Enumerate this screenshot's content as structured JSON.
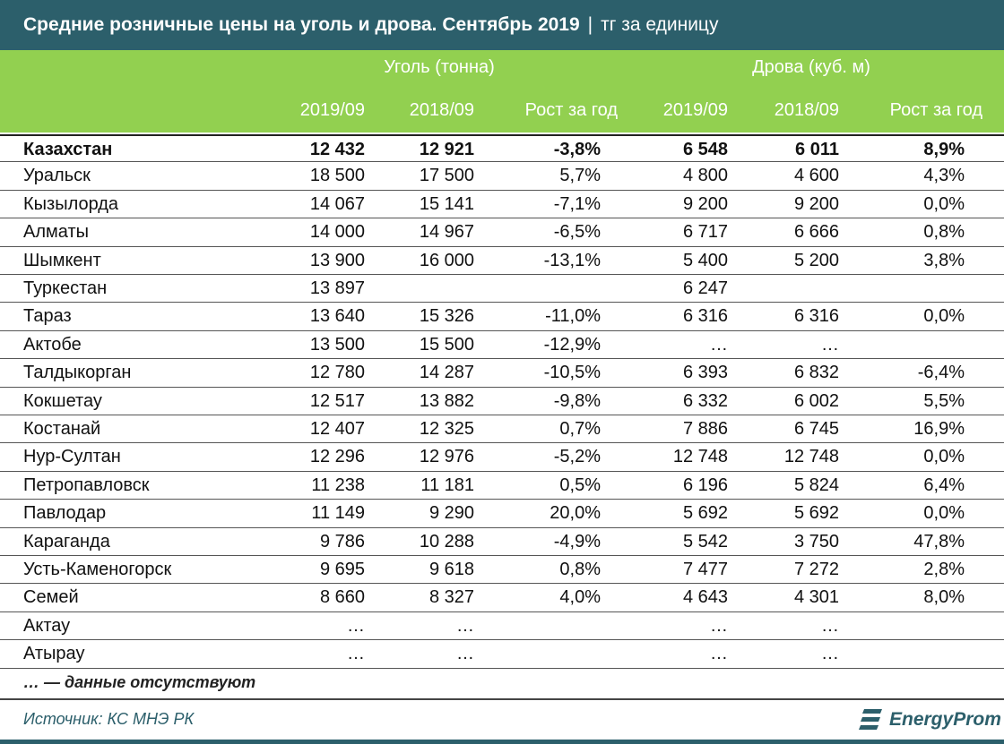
{
  "header": {
    "title": "Средние розничные цены на уголь и дрова. Сентябрь 2019",
    "separator": "|",
    "unit": "тг за единицу"
  },
  "groups": {
    "coal": "Уголь (тонна)",
    "wood": "Дрова (куб. м)"
  },
  "columns": [
    "2019/09",
    "2018/09",
    "Рост за год",
    "2019/09",
    "2018/09",
    "Рост за год"
  ],
  "chart_data": {
    "type": "table",
    "title": "Средние розничные цены на уголь и дрова. Сентябрь 2019",
    "unit": "тг за единицу",
    "groups": [
      "Уголь (тонна)",
      "Дрова (куб. м)"
    ],
    "columns": [
      "2019/09",
      "2018/09",
      "Рост за год",
      "2019/09",
      "2018/09",
      "Рост за год"
    ],
    "rows": [
      {
        "name": "Казахстан",
        "values": [
          "12 432",
          "12 921",
          "-3,8%",
          "6 548",
          "6 011",
          "8,9%"
        ]
      },
      {
        "name": "Уральск",
        "values": [
          "18 500",
          "17 500",
          "5,7%",
          "4 800",
          "4 600",
          "4,3%"
        ]
      },
      {
        "name": "Кызылорда",
        "values": [
          "14 067",
          "15 141",
          "-7,1%",
          "9 200",
          "9 200",
          "0,0%"
        ]
      },
      {
        "name": "Алматы",
        "values": [
          "14 000",
          "14 967",
          "-6,5%",
          "6 717",
          "6 666",
          "0,8%"
        ]
      },
      {
        "name": "Шымкент",
        "values": [
          "13 900",
          "16 000",
          "-13,1%",
          "5 400",
          "5 200",
          "3,8%"
        ]
      },
      {
        "name": "Туркестан",
        "values": [
          "13 897",
          "",
          "",
          "6 247",
          "",
          ""
        ]
      },
      {
        "name": "Тараз",
        "values": [
          "13 640",
          "15 326",
          "-11,0%",
          "6 316",
          "6 316",
          "0,0%"
        ]
      },
      {
        "name": "Актобе",
        "values": [
          "13 500",
          "15 500",
          "-12,9%",
          "…",
          "…",
          ""
        ]
      },
      {
        "name": "Талдыкорган",
        "values": [
          "12 780",
          "14 287",
          "-10,5%",
          "6 393",
          "6 832",
          "-6,4%"
        ]
      },
      {
        "name": "Кокшетау",
        "values": [
          "12 517",
          "13 882",
          "-9,8%",
          "6 332",
          "6 002",
          "5,5%"
        ]
      },
      {
        "name": "Костанай",
        "values": [
          "12 407",
          "12 325",
          "0,7%",
          "7 886",
          "6 745",
          "16,9%"
        ]
      },
      {
        "name": "Нур-Султан",
        "values": [
          "12 296",
          "12 976",
          "-5,2%",
          "12 748",
          "12 748",
          "0,0%"
        ]
      },
      {
        "name": "Петропавловск",
        "values": [
          "11 238",
          "11 181",
          "0,5%",
          "6 196",
          "5 824",
          "6,4%"
        ]
      },
      {
        "name": "Павлодар",
        "values": [
          "11 149",
          "9 290",
          "20,0%",
          "5 692",
          "5 692",
          "0,0%"
        ]
      },
      {
        "name": "Караганда",
        "values": [
          "9 786",
          "10 288",
          "-4,9%",
          "5 542",
          "3 750",
          "47,8%"
        ]
      },
      {
        "name": "Усть-Каменогорск",
        "values": [
          "9 695",
          "9 618",
          "0,8%",
          "7 477",
          "7 272",
          "2,8%"
        ]
      },
      {
        "name": "Семей",
        "values": [
          "8 660",
          "8 327",
          "4,0%",
          "4 643",
          "4 301",
          "8,0%"
        ]
      },
      {
        "name": "Актау",
        "values": [
          "…",
          "…",
          "",
          "…",
          "…",
          ""
        ]
      },
      {
        "name": "Атырау",
        "values": [
          "…",
          "…",
          "",
          "…",
          "…",
          ""
        ]
      }
    ]
  },
  "footer": {
    "note": "… — данные отсутствуют",
    "source": "Источник: КС МНЭ РК",
    "logo_text": "EnergyProm"
  },
  "colors": {
    "title_bg": "#2c5f6b",
    "header_bg": "#92d050",
    "header_text": "#ffffff",
    "logo_icon": "energyprom-logo-icon"
  }
}
